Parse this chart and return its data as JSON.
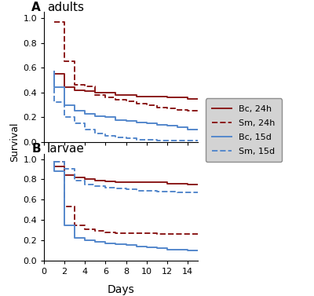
{
  "title_A": "adults",
  "title_B": "larvae",
  "label_A": "A",
  "label_B": "B",
  "xlabel": "Days",
  "ylabel": "Survival",
  "ylim": [
    0.0,
    1.05
  ],
  "xlim": [
    0,
    15
  ],
  "xticks": [
    0,
    2,
    4,
    6,
    8,
    10,
    12,
    14
  ],
  "yticks": [
    0.0,
    0.2,
    0.4,
    0.6,
    0.8,
    1.0
  ],
  "color_red": "#8B1A1A",
  "color_blue": "#5588CC",
  "legend_bg": "#C8C8C8",
  "adults_bc_24h_x": [
    1,
    1,
    2,
    2,
    3,
    3,
    4,
    4,
    5,
    5,
    6,
    6,
    7,
    7,
    8,
    8,
    9,
    9,
    10,
    10,
    11,
    11,
    12,
    12,
    13,
    13,
    14,
    14,
    15
  ],
  "adults_bc_24h_y": [
    0.57,
    0.55,
    0.55,
    0.44,
    0.44,
    0.42,
    0.42,
    0.41,
    0.41,
    0.4,
    0.4,
    0.4,
    0.4,
    0.38,
    0.38,
    0.38,
    0.38,
    0.37,
    0.37,
    0.37,
    0.37,
    0.37,
    0.37,
    0.36,
    0.36,
    0.36,
    0.36,
    0.35,
    0.35
  ],
  "adults_sm_24h_x": [
    1,
    1,
    2,
    2,
    3,
    3,
    4,
    4,
    5,
    5,
    6,
    6,
    7,
    7,
    8,
    8,
    9,
    9,
    10,
    10,
    11,
    11,
    12,
    12,
    13,
    13,
    14,
    14,
    15
  ],
  "adults_sm_24h_y": [
    0.97,
    0.97,
    0.97,
    0.65,
    0.65,
    0.46,
    0.46,
    0.45,
    0.45,
    0.38,
    0.38,
    0.36,
    0.36,
    0.34,
    0.34,
    0.33,
    0.33,
    0.31,
    0.31,
    0.3,
    0.3,
    0.28,
    0.28,
    0.27,
    0.27,
    0.26,
    0.26,
    0.25,
    0.25
  ],
  "adults_bc_15d_x": [
    1,
    1,
    2,
    2,
    3,
    3,
    4,
    4,
    5,
    5,
    6,
    6,
    7,
    7,
    8,
    8,
    9,
    9,
    10,
    10,
    11,
    11,
    12,
    12,
    13,
    13,
    14,
    14,
    15
  ],
  "adults_bc_15d_y": [
    0.57,
    0.44,
    0.44,
    0.3,
    0.3,
    0.25,
    0.25,
    0.23,
    0.23,
    0.21,
    0.21,
    0.2,
    0.2,
    0.18,
    0.18,
    0.17,
    0.17,
    0.16,
    0.16,
    0.15,
    0.15,
    0.14,
    0.14,
    0.13,
    0.13,
    0.12,
    0.12,
    0.1,
    0.1
  ],
  "adults_sm_15d_x": [
    1,
    1,
    2,
    2,
    3,
    3,
    4,
    4,
    5,
    5,
    6,
    6,
    7,
    7,
    8,
    8,
    9,
    9,
    10,
    10,
    11,
    11,
    12,
    12,
    13,
    13,
    14,
    14,
    15
  ],
  "adults_sm_15d_y": [
    0.57,
    0.32,
    0.32,
    0.2,
    0.2,
    0.15,
    0.15,
    0.1,
    0.1,
    0.07,
    0.07,
    0.05,
    0.05,
    0.04,
    0.04,
    0.03,
    0.03,
    0.02,
    0.02,
    0.02,
    0.02,
    0.01,
    0.01,
    0.01,
    0.01,
    0.01,
    0.01,
    0.01,
    0.01
  ],
  "larvae_bc_24h_x": [
    1,
    1,
    2,
    2,
    3,
    3,
    4,
    4,
    5,
    5,
    6,
    6,
    7,
    7,
    8,
    8,
    9,
    9,
    10,
    10,
    11,
    11,
    12,
    12,
    13,
    13,
    14,
    14,
    15
  ],
  "larvae_bc_24h_y": [
    0.97,
    0.93,
    0.93,
    0.84,
    0.84,
    0.82,
    0.82,
    0.8,
    0.8,
    0.79,
    0.79,
    0.78,
    0.78,
    0.77,
    0.77,
    0.77,
    0.77,
    0.77,
    0.77,
    0.77,
    0.77,
    0.77,
    0.77,
    0.76,
    0.76,
    0.76,
    0.76,
    0.75,
    0.75
  ],
  "larvae_sm_24h_x": [
    1,
    1,
    2,
    2,
    3,
    3,
    4,
    4,
    5,
    5,
    6,
    6,
    7,
    7,
    8,
    8,
    9,
    9,
    10,
    10,
    11,
    11,
    12,
    12,
    13,
    13,
    14,
    14,
    15
  ],
  "larvae_sm_24h_y": [
    0.97,
    0.97,
    0.97,
    0.53,
    0.53,
    0.35,
    0.35,
    0.31,
    0.31,
    0.29,
    0.29,
    0.28,
    0.28,
    0.27,
    0.27,
    0.27,
    0.27,
    0.27,
    0.27,
    0.27,
    0.27,
    0.26,
    0.26,
    0.26,
    0.26,
    0.26,
    0.26,
    0.26,
    0.26
  ],
  "larvae_bc_15d_x": [
    1,
    1,
    2,
    2,
    3,
    3,
    4,
    4,
    5,
    5,
    6,
    6,
    7,
    7,
    8,
    8,
    9,
    9,
    10,
    10,
    11,
    11,
    12,
    12,
    13,
    13,
    14,
    14,
    15
  ],
  "larvae_bc_15d_y": [
    0.97,
    0.88,
    0.88,
    0.35,
    0.35,
    0.22,
    0.22,
    0.2,
    0.2,
    0.18,
    0.18,
    0.17,
    0.17,
    0.16,
    0.16,
    0.15,
    0.15,
    0.14,
    0.14,
    0.13,
    0.13,
    0.12,
    0.12,
    0.11,
    0.11,
    0.11,
    0.11,
    0.1,
    0.1
  ],
  "larvae_sm_15d_x": [
    1,
    1,
    2,
    2,
    3,
    3,
    4,
    4,
    5,
    5,
    6,
    6,
    7,
    7,
    8,
    8,
    9,
    9,
    10,
    10,
    11,
    11,
    12,
    12,
    13,
    13,
    14,
    14,
    15
  ],
  "larvae_sm_15d_y": [
    0.97,
    0.97,
    0.97,
    0.9,
    0.9,
    0.79,
    0.79,
    0.75,
    0.75,
    0.73,
    0.73,
    0.72,
    0.72,
    0.71,
    0.71,
    0.7,
    0.7,
    0.69,
    0.69,
    0.69,
    0.69,
    0.68,
    0.68,
    0.68,
    0.68,
    0.67,
    0.67,
    0.67,
    0.67
  ]
}
